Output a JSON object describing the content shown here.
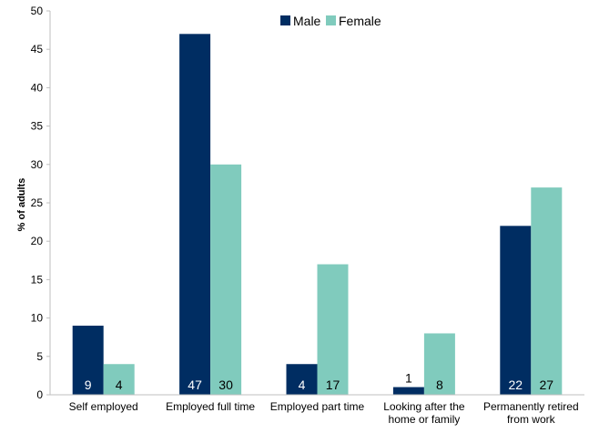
{
  "chart_data": {
    "type": "bar",
    "categories": [
      [
        "Self employed"
      ],
      [
        "Employed full time"
      ],
      [
        "Employed part time"
      ],
      [
        "Looking after the",
        "home or family"
      ],
      [
        "Permanently retired",
        "from work"
      ]
    ],
    "series": [
      {
        "name": "Male",
        "color": "#002d62",
        "values": [
          9,
          47,
          4,
          1,
          22
        ]
      },
      {
        "name": "Female",
        "color": "#80cbbd",
        "values": [
          4,
          30,
          17,
          8,
          27
        ]
      }
    ],
    "data_labels": {
      "Male": [
        "9",
        "47",
        "4",
        "1",
        "22"
      ],
      "Female": [
        "4",
        "30",
        "17",
        "8",
        "27"
      ]
    },
    "ylabel": "% of adults",
    "xlabel": "",
    "ylim": [
      0,
      50
    ],
    "yticks": [
      0,
      5,
      10,
      15,
      20,
      25,
      30,
      35,
      40,
      45,
      50
    ],
    "grid": false,
    "legend_position": "top-center"
  }
}
